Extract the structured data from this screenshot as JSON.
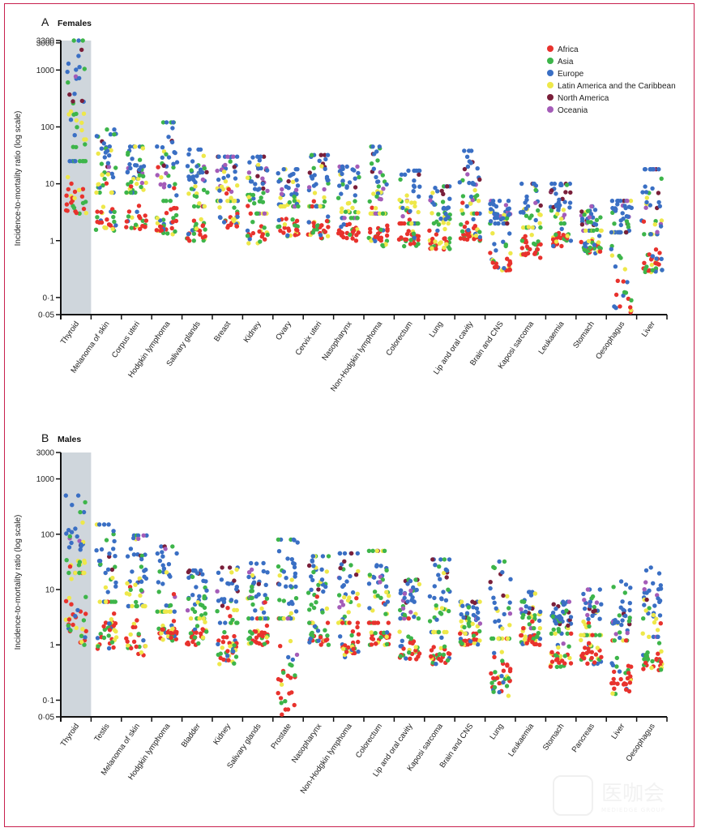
{
  "figure": {
    "watermark_text": "医咖会",
    "watermark_subtext": "MEDIEDGE GROUP"
  },
  "legend": {
    "items": [
      {
        "label": "Africa",
        "color": "#e8322d"
      },
      {
        "label": "Asia",
        "color": "#3db54a"
      },
      {
        "label": "Europe",
        "color": "#3a6fc4"
      },
      {
        "label": "Latin America and the Caribbean",
        "color": "#eee84a"
      },
      {
        "label": "North America",
        "color": "#7a1f3a"
      },
      {
        "label": "Oceania",
        "color": "#a45cb8"
      }
    ]
  },
  "chart_data": [
    {
      "type": "scatter",
      "panel_letter": "A",
      "title": "Females",
      "xlabel": "",
      "ylabel": "Incidence-to-mortality ratio (log scale)",
      "yscale": "log",
      "ylim": [
        0.05,
        3300
      ],
      "yticks": [
        {
          "value": 3300,
          "label": "3300"
        },
        {
          "value": 3000,
          "label": "3000"
        },
        {
          "value": 1000,
          "label": "1000"
        },
        {
          "value": 100,
          "label": "100"
        },
        {
          "value": 10,
          "label": "10"
        },
        {
          "value": 1,
          "label": "1"
        },
        {
          "value": 0.1,
          "label": "0·1"
        },
        {
          "value": 0.05,
          "label": "0·05"
        }
      ],
      "highlighted_category": "Thyroid",
      "categories": [
        "Thyroid",
        "Melanoma of skin",
        "Corpus uteri",
        "Hodgkin lymphoma",
        "Salivary glands",
        "Breast",
        "Kidney",
        "Ovary",
        "Cervix uteri",
        "Nasopharynx",
        "Non-Hodgkin lymphoma",
        "Colorectum",
        "Lung",
        "Lip and oral cavity",
        "Brain and CNS",
        "Kaposi sarcoma",
        "Leukaemia",
        "Stomach",
        "Oesophagus",
        "Liver"
      ],
      "series_summary": [
        {
          "category": "Thyroid",
          "min": 3,
          "max": 3300,
          "median": 25,
          "Africa": [
            3,
            60
          ],
          "Asia": [
            10,
            3300
          ],
          "Europe": [
            500,
            1500
          ],
          "Latin America and the Caribbean": [
            4,
            400
          ],
          "North America": [
            900,
            1300
          ],
          "Oceania": [
            4,
            15
          ]
        },
        {
          "category": "Melanoma of skin",
          "min": 1.5,
          "max": 90,
          "median": 7
        },
        {
          "category": "Corpus uteri",
          "min": 1.6,
          "max": 45,
          "median": 7
        },
        {
          "category": "Hodgkin lymphoma",
          "min": 1.3,
          "max": 120,
          "median": 5
        },
        {
          "category": "Salivary glands",
          "min": 1,
          "max": 40,
          "median": 4
        },
        {
          "category": "Breast",
          "min": 1.7,
          "max": 30,
          "median": 5
        },
        {
          "category": "Kidney",
          "min": 0.9,
          "max": 30,
          "median": 3
        },
        {
          "category": "Ovary",
          "min": 1.2,
          "max": 18,
          "median": 4
        },
        {
          "category": "Cervix uteri",
          "min": 1.1,
          "max": 32,
          "median": 4
        },
        {
          "category": "Nasopharynx",
          "min": 1,
          "max": 20,
          "median": 2.5
        },
        {
          "category": "Non-Hodgkin lymphoma",
          "min": 0.8,
          "max": 45,
          "median": 3
        },
        {
          "category": "Colorectum",
          "min": 0.8,
          "max": 17,
          "median": 2
        },
        {
          "category": "Lung",
          "min": 0.7,
          "max": 9,
          "median": 1.5
        },
        {
          "category": "Lip and oral cavity",
          "min": 1,
          "max": 38,
          "median": 3
        },
        {
          "category": "Brain and CNS",
          "min": 0.3,
          "max": 5,
          "median": 2
        },
        {
          "category": "Kaposi sarcoma",
          "min": 0.5,
          "max": 10,
          "median": 1.7
        },
        {
          "category": "Leukaemia",
          "min": 0.8,
          "max": 10,
          "median": 2
        },
        {
          "category": "Stomach",
          "min": 0.6,
          "max": 4,
          "median": 1.5
        },
        {
          "category": "Oesophagus",
          "min": 0.055,
          "max": 5,
          "median": 1.4
        },
        {
          "category": "Liver",
          "min": 0.28,
          "max": 18,
          "median": 1.3
        }
      ]
    },
    {
      "type": "scatter",
      "panel_letter": "B",
      "title": "Males",
      "xlabel": "",
      "ylabel": "Incidence-to-mortality ratio (log scale)",
      "yscale": "log",
      "ylim": [
        0.05,
        3000
      ],
      "yticks": [
        {
          "value": 3000,
          "label": "3000"
        },
        {
          "value": 1000,
          "label": "1000"
        },
        {
          "value": 100,
          "label": "100"
        },
        {
          "value": 10,
          "label": "10"
        },
        {
          "value": 1,
          "label": "1"
        },
        {
          "value": 0.1,
          "label": "0·1"
        },
        {
          "value": 0.05,
          "label": "0·05"
        }
      ],
      "highlighted_category": "Thyroid",
      "categories": [
        "Thyroid",
        "Testis",
        "Melanoma of skin",
        "Hodgkin lymphoma",
        "Bladder",
        "Kidney",
        "Salivary glands",
        "Prostate",
        "Nasopharynx",
        "Non-Hodgkin lymphoma",
        "Colorectum",
        "Lip and oral cavity",
        "Kaposi sarcoma",
        "Brain and CNS",
        "Lung",
        "Leukaemia",
        "Stomach",
        "Pancreas",
        "Liver",
        "Oesophagus"
      ],
      "series_summary": [
        {
          "category": "Thyroid",
          "min": 1,
          "max": 500,
          "median": 20
        },
        {
          "category": "Testis",
          "min": 0.85,
          "max": 150,
          "median": 6
        },
        {
          "category": "Melanoma of skin",
          "min": 0.65,
          "max": 95,
          "median": 5
        },
        {
          "category": "Hodgkin lymphoma",
          "min": 1.2,
          "max": 60,
          "median": 4
        },
        {
          "category": "Bladder",
          "min": 1,
          "max": 22,
          "median": 3
        },
        {
          "category": "Kidney",
          "min": 0.45,
          "max": 25,
          "median": 2.5
        },
        {
          "category": "Salivary glands",
          "min": 1,
          "max": 30,
          "median": 3
        },
        {
          "category": "Prostate",
          "min": 0.055,
          "max": 80,
          "median": 3
        },
        {
          "category": "Nasopharynx",
          "min": 1,
          "max": 40,
          "median": 2.5
        },
        {
          "category": "Non-Hodgkin lymphoma",
          "min": 0.6,
          "max": 45,
          "median": 2.5
        },
        {
          "category": "Colorectum",
          "min": 1,
          "max": 50,
          "median": 2.5
        },
        {
          "category": "Lip and oral cavity",
          "min": 0.55,
          "max": 15,
          "median": 3
        },
        {
          "category": "Kaposi sarcoma",
          "min": 0.45,
          "max": 35,
          "median": 1.7
        },
        {
          "category": "Brain and CNS",
          "min": 1,
          "max": 6,
          "median": 1.6
        },
        {
          "category": "Lung",
          "min": 0.12,
          "max": 32,
          "median": 1.3
        },
        {
          "category": "Leukaemia",
          "min": 1,
          "max": 9,
          "median": 2
        },
        {
          "category": "Stomach",
          "min": 0.4,
          "max": 6,
          "median": 1.6
        },
        {
          "category": "Pancreas",
          "min": 0.45,
          "max": 10,
          "median": 1.5
        },
        {
          "category": "Liver",
          "min": 0.13,
          "max": 14,
          "median": 1.2
        },
        {
          "category": "Oesophagus",
          "min": 0.35,
          "max": 25,
          "median": 1.4
        }
      ]
    }
  ]
}
